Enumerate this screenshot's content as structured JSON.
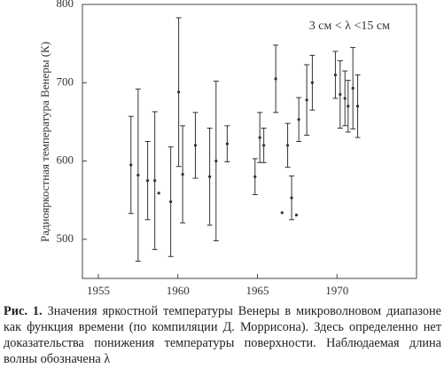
{
  "chart_data": {
    "type": "errorbar",
    "ylabel": "Радиояркостная температура Венеры (К)",
    "annotation": "3 см <  λ <15 см",
    "x": [
      1957.05,
      1957.5,
      1958.1,
      1958.55,
      1958.8,
      1959.55,
      1960.05,
      1960.3,
      1961.1,
      1962.0,
      1962.4,
      1963.1,
      1964.85,
      1965.15,
      1965.4,
      1966.15,
      1966.55,
      1966.9,
      1967.15,
      1967.45,
      1967.6,
      1968.1,
      1968.45,
      1969.9,
      1970.2,
      1970.5,
      1970.7,
      1971.0,
      1971.3
    ],
    "values": [
      595,
      582,
      575,
      575,
      559,
      548,
      688,
      583,
      620,
      580,
      600,
      622,
      580,
      630,
      620,
      705,
      534,
      620,
      553,
      531,
      653,
      678,
      700,
      710,
      685,
      680,
      670,
      693,
      670
    ],
    "errors": [
      62,
      110,
      50,
      88,
      null,
      70,
      95,
      62,
      42,
      62,
      102,
      23,
      23,
      32,
      22,
      43,
      null,
      28,
      28,
      null,
      28,
      45,
      35,
      30,
      43,
      35,
      33,
      52,
      40
    ],
    "color": "#333333",
    "xlim": [
      1954,
      1975
    ],
    "xticks": [
      1955,
      1960,
      1965,
      1970
    ],
    "ylim": [
      450,
      800
    ],
    "yticks": [
      500,
      600,
      700,
      800
    ]
  },
  "caption": {
    "label": "Рис. 1.",
    "text": "Значения яркостной температуры Венеры в микроволновом диапазоне как функция времени (по компиляции Д. Моррисона). Здесь определенно нет доказательства понижения температуры поверхности. Наблюдаемая длина волны обозначена λ"
  }
}
